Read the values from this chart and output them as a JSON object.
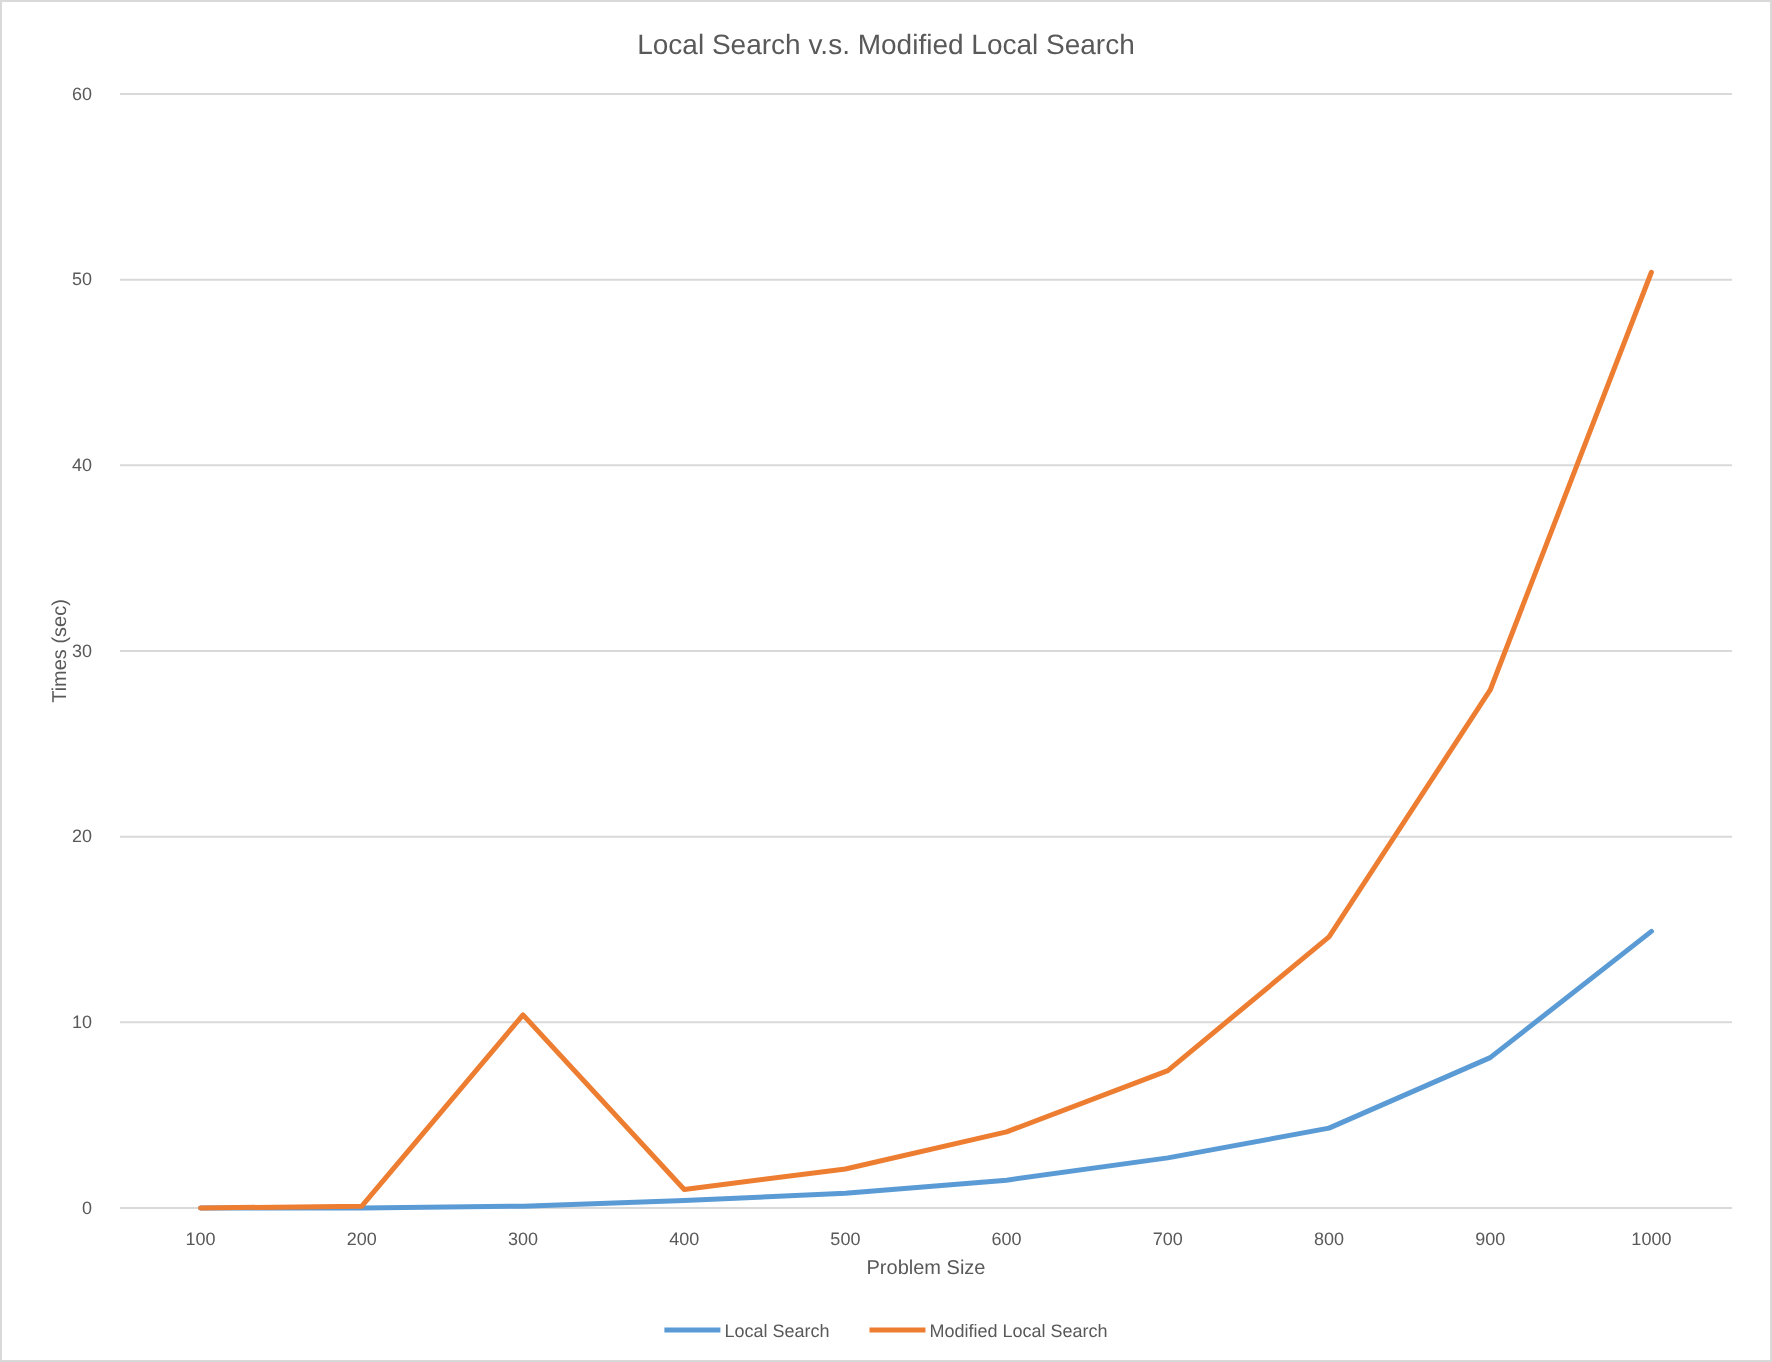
{
  "chart_data": {
    "type": "line",
    "title": "Local Search v.s. Modified Local Search",
    "xlabel": "Problem Size",
    "ylabel": "Times (sec)",
    "categories": [
      "100",
      "200",
      "300",
      "400",
      "500",
      "600",
      "700",
      "800",
      "900",
      "1000"
    ],
    "series": [
      {
        "name": "Local Search",
        "color": "#5b9bd5",
        "values": [
          0,
          0,
          0.1,
          0.4,
          0.8,
          1.5,
          2.7,
          4.3,
          8.1,
          14.9
        ]
      },
      {
        "name": "Modified Local Search",
        "color": "#ed7d31",
        "values": [
          0,
          0.1,
          10.4,
          1.0,
          2.1,
          4.1,
          7.4,
          14.6,
          27.9,
          50.4
        ]
      }
    ],
    "ylim": [
      0,
      60
    ],
    "yticks": [
      0,
      10,
      20,
      30,
      40,
      50,
      60
    ],
    "grid": "y",
    "legend": "bottom",
    "marker": "none",
    "line_style": "solid"
  }
}
